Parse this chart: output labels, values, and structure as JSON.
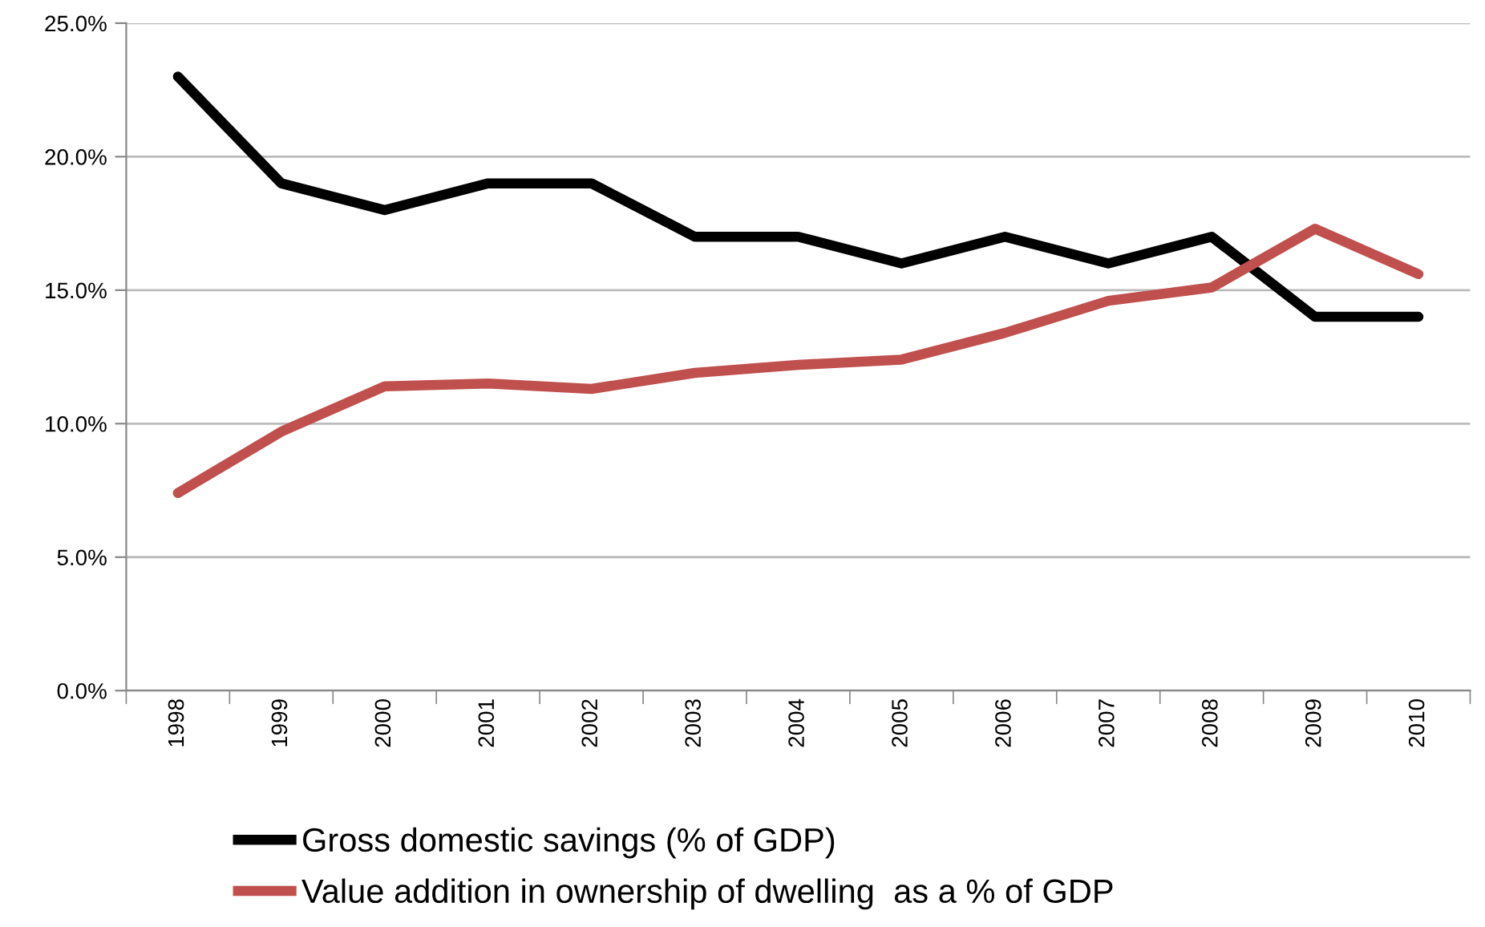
{
  "chart_data": {
    "type": "line",
    "categories": [
      "1998",
      "1999",
      "2000",
      "2001",
      "2002",
      "2003",
      "2004",
      "2005",
      "2006",
      "2007",
      "2008",
      "2009",
      "2010"
    ],
    "series": [
      {
        "name": "Gross domestic savings (% of GDP)",
        "color": "#000000",
        "values": [
          23,
          19,
          18,
          19,
          19,
          17,
          17,
          16,
          17,
          16,
          17,
          14,
          14
        ]
      },
      {
        "name": "Value addition in ownership of dwelling  as a % of GDP",
        "color": "#c0504d",
        "values": [
          7.4,
          9.7,
          11.4,
          11.5,
          11.3,
          11.9,
          12.2,
          12.4,
          13.4,
          14.6,
          15.1,
          17.3,
          15.6
        ]
      }
    ],
    "ylim": [
      0,
      25
    ],
    "yticks": [
      {
        "value": 0,
        "label": "0.0%"
      },
      {
        "value": 5,
        "label": "5.0%"
      },
      {
        "value": 10,
        "label": "10.0%"
      },
      {
        "value": 15,
        "label": "15.0%"
      },
      {
        "value": 20,
        "label": "20.0%"
      },
      {
        "value": 25,
        "label": "25.0%"
      }
    ],
    "grid": "y",
    "legend": "bottom",
    "marker": "none",
    "line_style": "solid"
  }
}
